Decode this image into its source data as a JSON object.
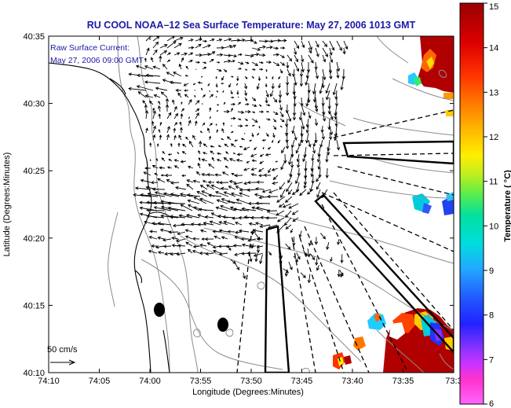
{
  "title": "RU COOL   NOAA–12  Sea Surface Temperature:  May 27, 2006 1013 GMT",
  "legend": {
    "line1": "Raw Surface Current:",
    "line2": "May 27, 2006 09:00 GMT"
  },
  "scale_label": "50 cm/s",
  "x_axis": {
    "title": "Longitude (Degrees:Minutes)",
    "ticks": [
      "74:10",
      "74:05",
      "74:00",
      "73:55",
      "73:50",
      "73:45",
      "73:40",
      "73:35",
      "73:3"
    ]
  },
  "y_axis": {
    "title": "Latitude (Degrees:Minutes)",
    "ticks": [
      "40:35",
      "40:30",
      "40:25",
      "40:20",
      "40:15",
      "40:10"
    ]
  },
  "colorbar": {
    "title": "Temperature ( °C)",
    "ticks": [
      "15",
      "14",
      "13",
      "12",
      "11",
      "10",
      "9",
      "8",
      "7",
      "6"
    ],
    "range": [
      6,
      15
    ]
  }
}
